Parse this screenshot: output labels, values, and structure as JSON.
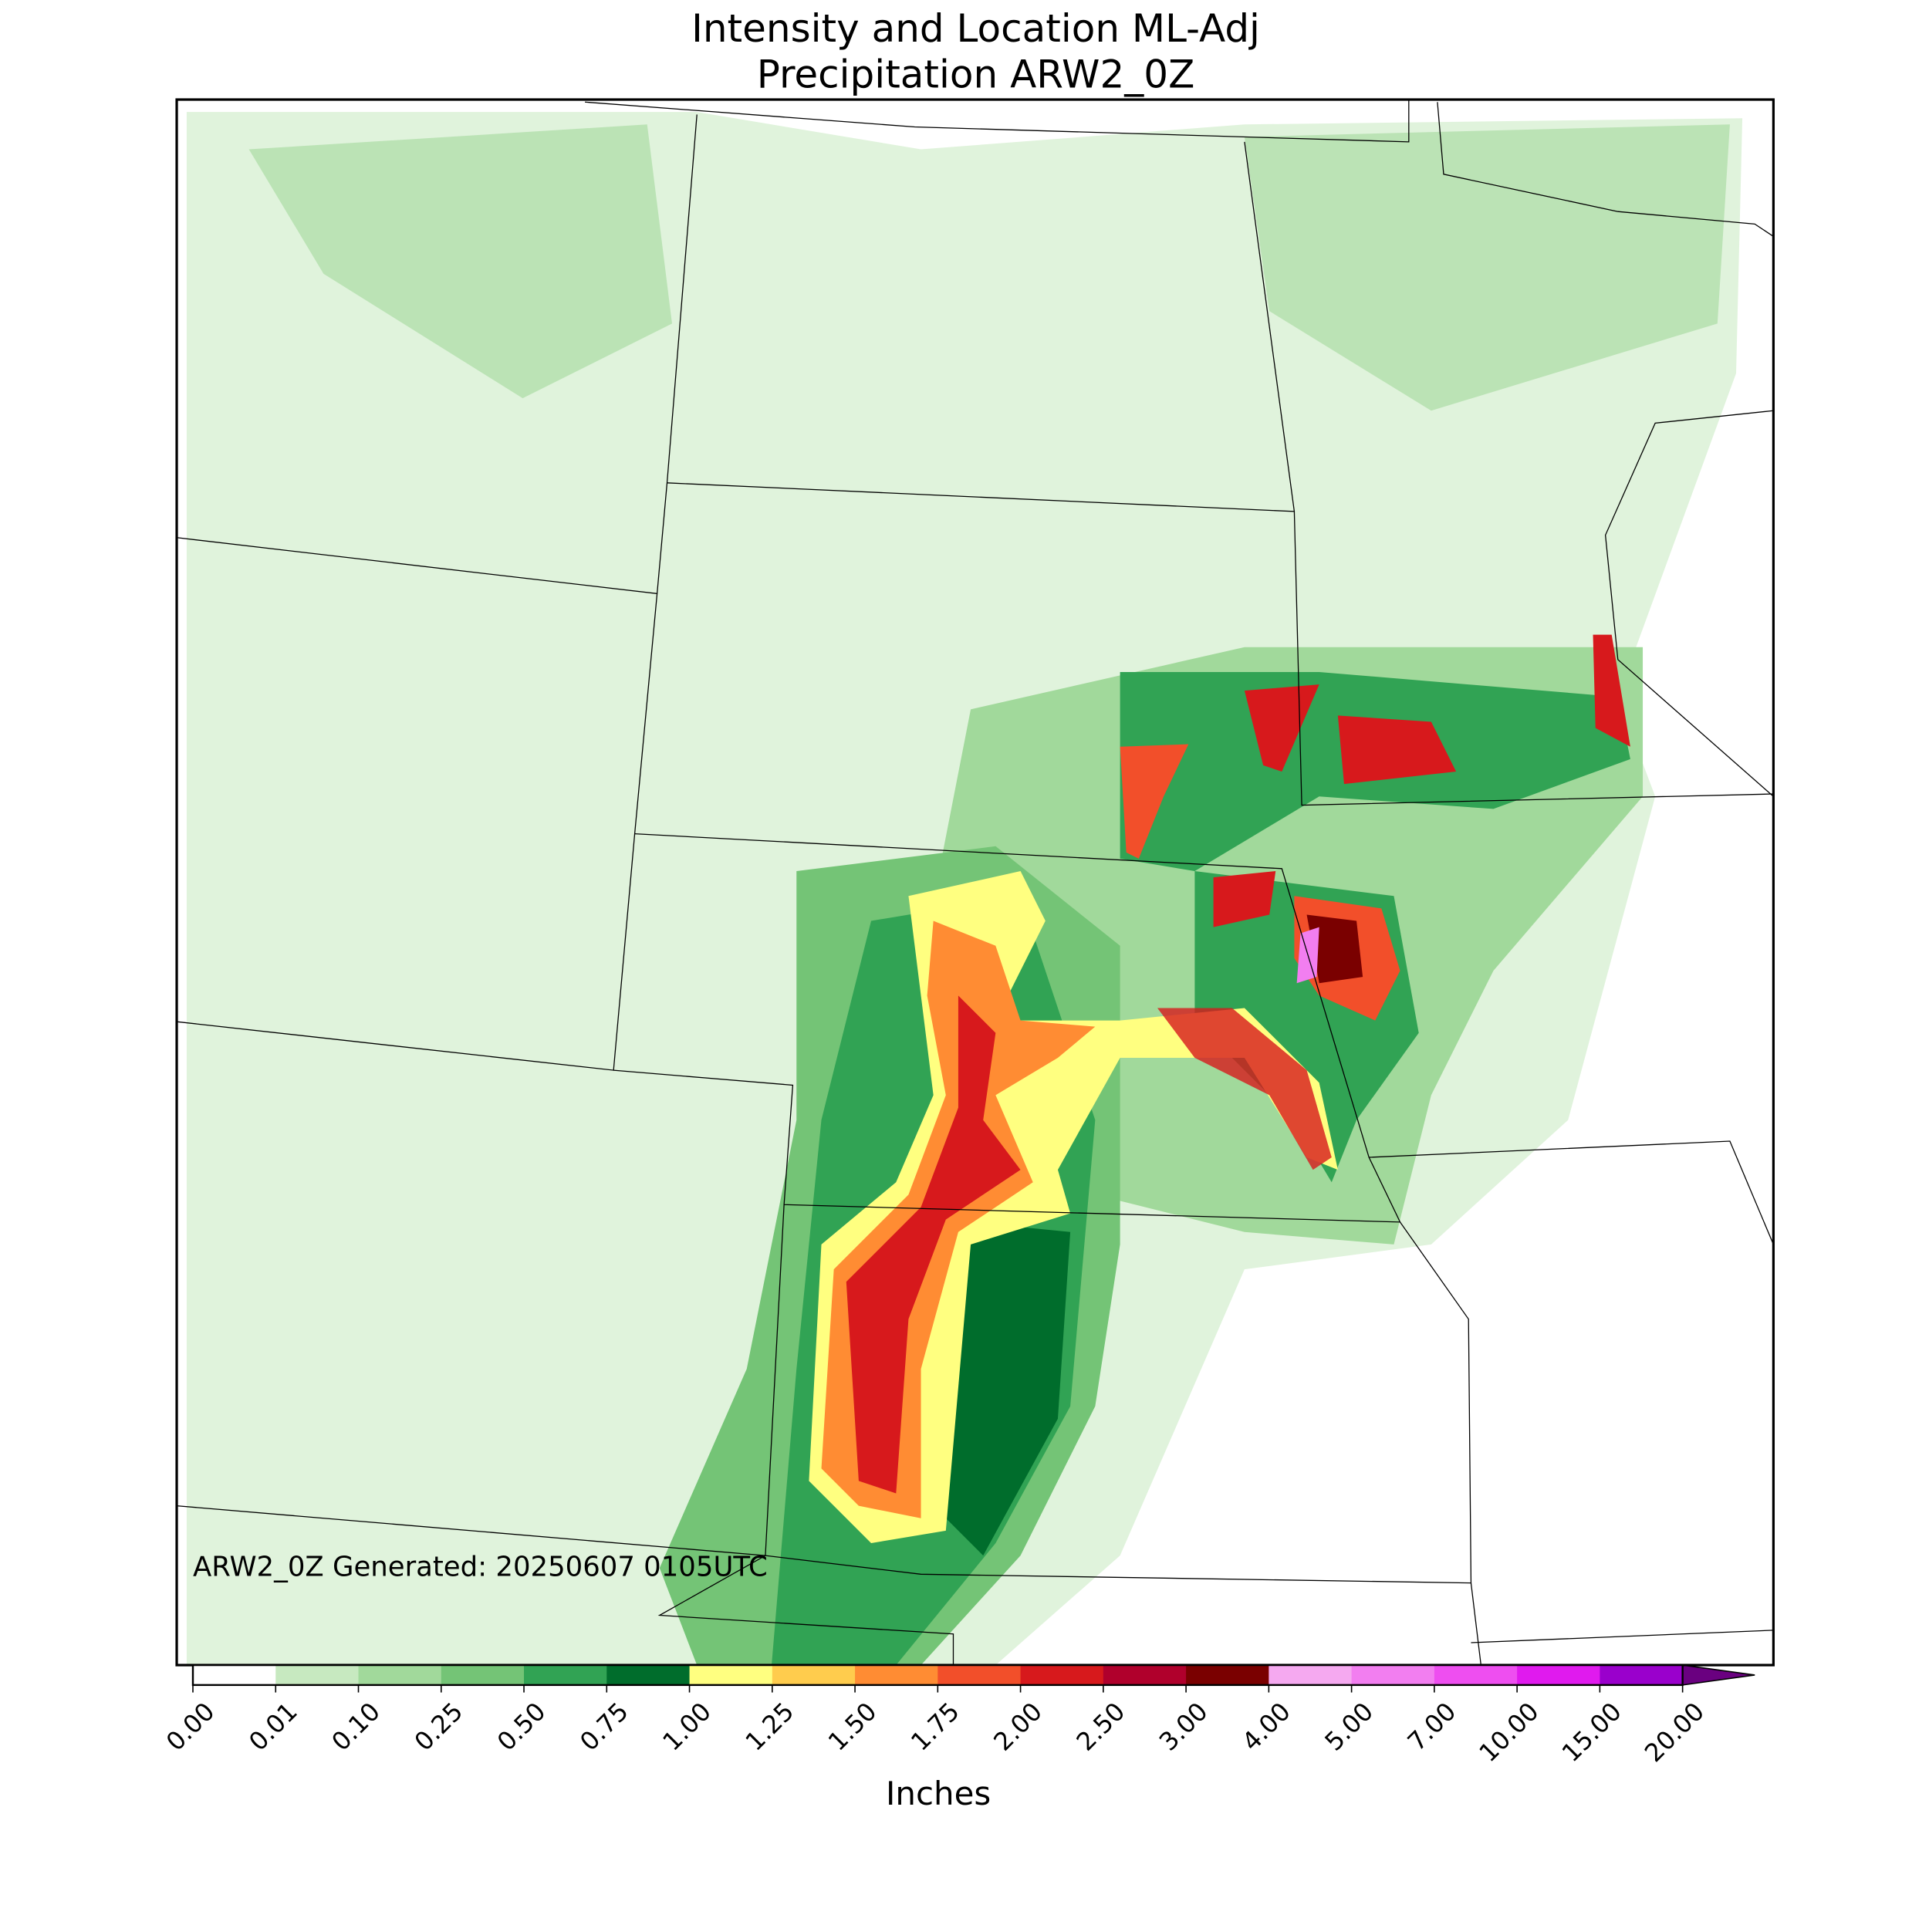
{
  "title": "Intensity and Location ML-Adj",
  "subtitle": "Precipitation ARW2_0Z",
  "annotation": "ARW2_0Z Generated: 20250607 0105UTC",
  "colorbar": {
    "label": "Inches",
    "ticks": [
      {
        "value": 0,
        "label": "0.00"
      },
      {
        "value": 0.01,
        "label": "0.01"
      },
      {
        "value": 0.1,
        "label": "0.10"
      },
      {
        "value": 0.25,
        "label": "0.25"
      },
      {
        "value": 0.5,
        "label": "0.50"
      },
      {
        "value": 0.75,
        "label": "0.75"
      },
      {
        "value": 1,
        "label": "1.00"
      },
      {
        "value": 1.25,
        "label": "1.25"
      },
      {
        "value": 1.5,
        "label": "1.50"
      },
      {
        "value": 1.75,
        "label": "1.75"
      },
      {
        "value": 2,
        "label": "2.00"
      },
      {
        "value": 2.5,
        "label": "2.50"
      },
      {
        "value": 3,
        "label": "3.00"
      },
      {
        "value": 4,
        "label": "4.00"
      },
      {
        "value": 5,
        "label": "5.00"
      },
      {
        "value": 7,
        "label": "7.00"
      },
      {
        "value": 10,
        "label": "10.00"
      },
      {
        "value": 15,
        "label": "15.00"
      },
      {
        "value": 20,
        "label": "20.00"
      }
    ],
    "colors": [
      "#ffffff",
      "#c7e9c0",
      "#a1d99b",
      "#74c476",
      "#31a354",
      "#006d2c",
      "#ffff80",
      "#ffcc4d",
      "#ff8c33",
      "#f24f2a",
      "#d7191c",
      "#b0002c",
      "#7a0000",
      "#f5a9f0",
      "#f27ef0",
      "#ee4ef0",
      "#e01aee",
      "#9a00cc"
    ],
    "extend_color": "#6a0080"
  }
}
